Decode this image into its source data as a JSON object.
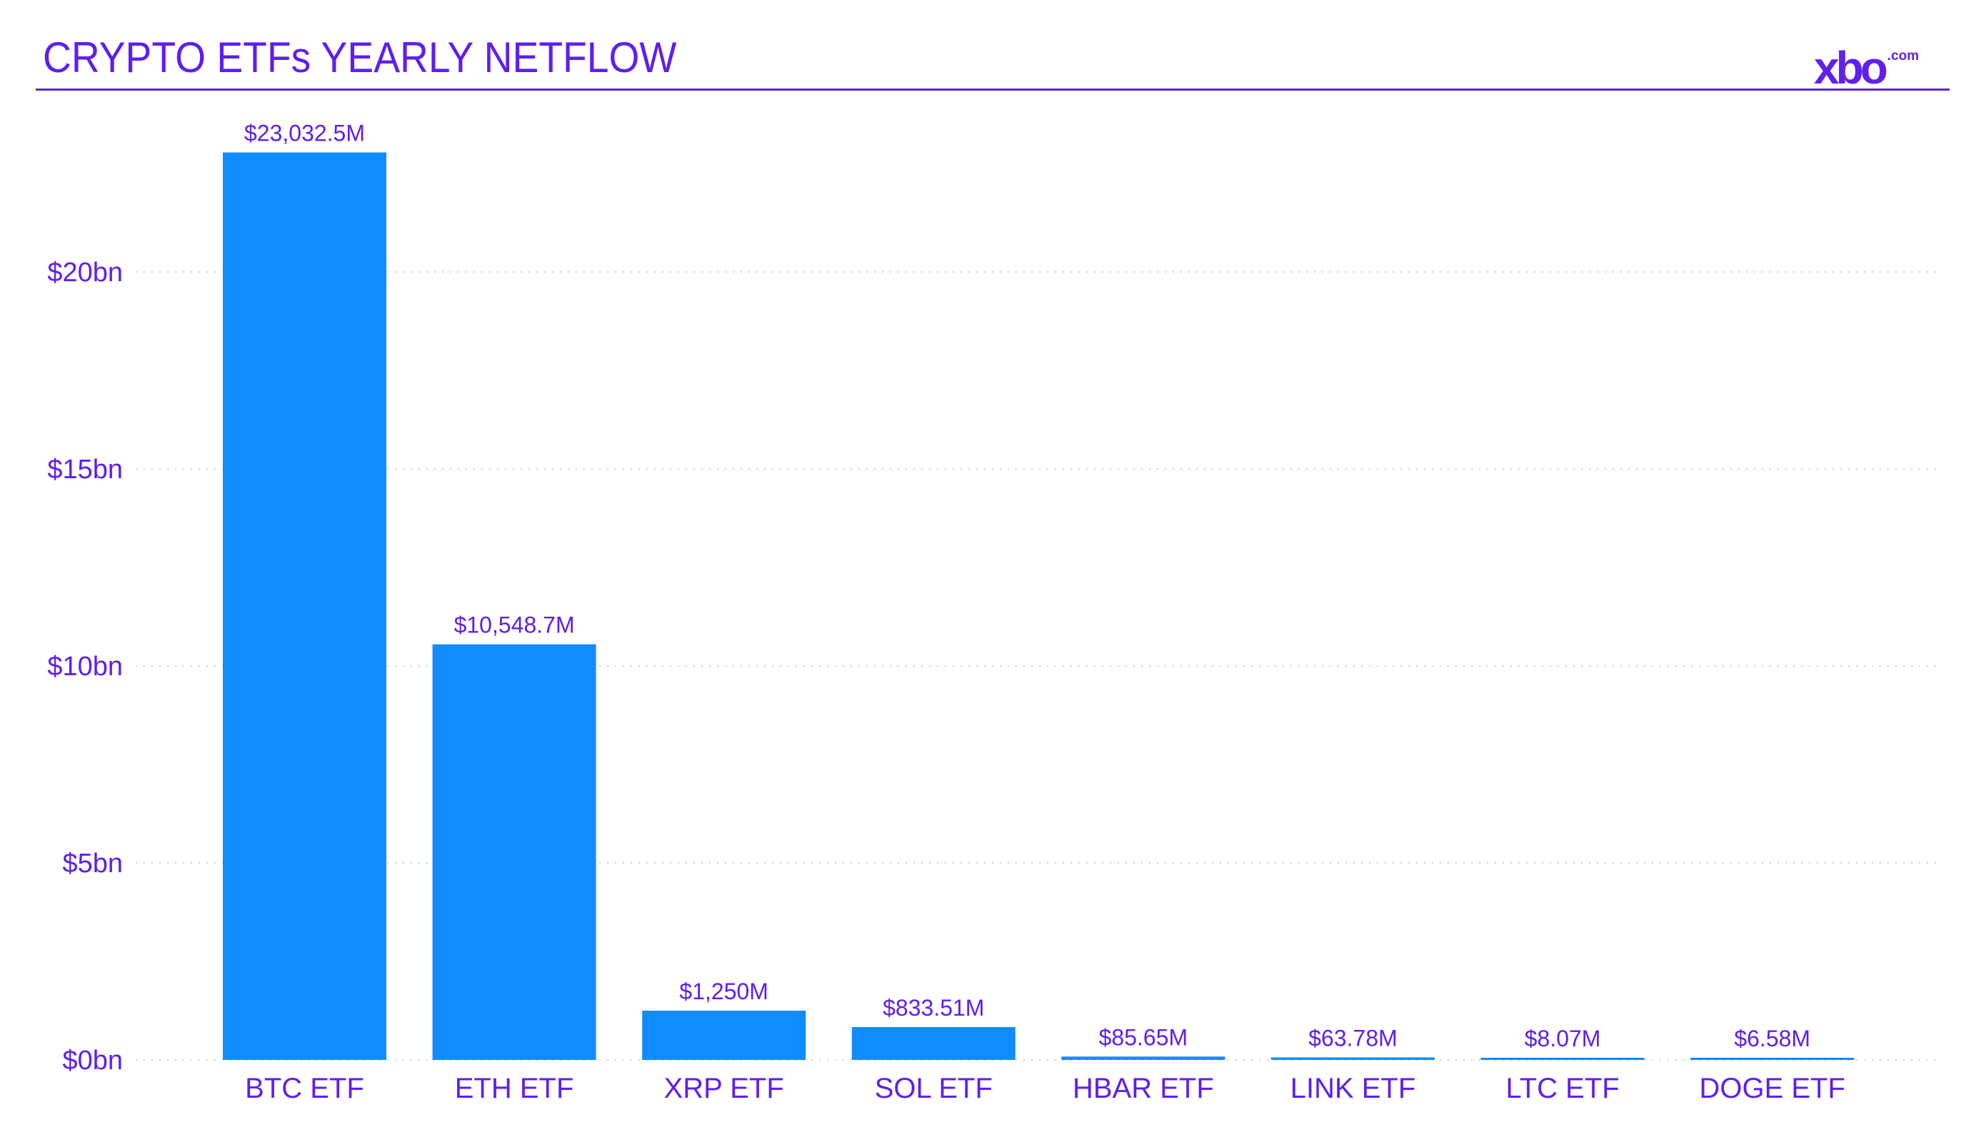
{
  "header": {
    "title": "CRYPTO ETFs YEARLY NETFLOW",
    "logo_main": "xbo",
    "logo_domain": ".com"
  },
  "colors": {
    "bar": "#118cff",
    "text": "#5f1ef0",
    "grid": "#d0d0d0"
  },
  "chart_data": {
    "type": "bar",
    "title": "CRYPTO ETFs YEARLY NETFLOW",
    "xlabel": "",
    "ylabel": "",
    "ylim": [
      0,
      23.5
    ],
    "unit": "bn USD",
    "yticks": [
      0,
      5,
      10,
      15,
      20
    ],
    "ytick_labels": [
      "$0bn",
      "$5bn",
      "$10bn",
      "$15bn",
      "$20bn"
    ],
    "grid": true,
    "categories": [
      "BTC ETF",
      "ETH ETF",
      "XRP ETF",
      "SOL ETF",
      "HBAR ETF",
      "LINK ETF",
      "LTC ETF",
      "DOGE ETF"
    ],
    "values": [
      23.0325,
      10.5487,
      1.25,
      0.83351,
      0.08565,
      0.06378,
      0.00807,
      0.00658
    ],
    "data_labels": [
      "$23,032.5M",
      "$10,548.7M",
      "$1,250M",
      "$833.51M",
      "$85.65M",
      "$63.78M",
      "$8.07M",
      "$6.58M"
    ]
  }
}
